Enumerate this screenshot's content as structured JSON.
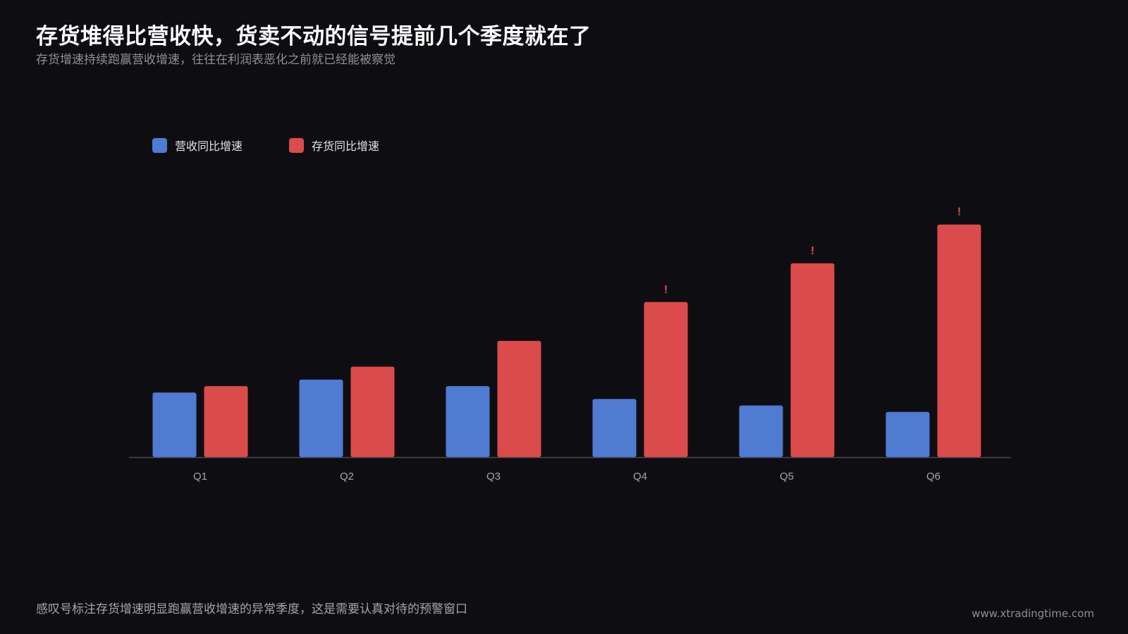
{
  "title": "存货堆得比营收快，货卖不动的信号提前几个季度就在了",
  "subtitle": "存货增速持续跑赢营收增速，往往在利润表恶化之前就已经能被察觉",
  "footnote": "感叹号标注存货增速明显跑赢营收增速的异常季度，这是需要认真对待的预警窗口",
  "watermark": "www.xtradingtime.com",
  "colors": {
    "background": "#0e0e12",
    "revenue": "#507bd3",
    "inventory": "#dc4b4b",
    "warning": "#e0504e",
    "axis": "#4a4a52",
    "tick_text": "#a4a4ab"
  },
  "chart_data": {
    "type": "bar",
    "categories": [
      "Q1",
      "Q2",
      "Q3",
      "Q4",
      "Q5",
      "Q6"
    ],
    "series": [
      {
        "name": "营收同比增速",
        "color": "#507bd3",
        "values": [
          10,
          12,
          11,
          9,
          8,
          7
        ]
      },
      {
        "name": "存货同比增速",
        "color": "#dc4b4b",
        "values": [
          11,
          14,
          18,
          24,
          30,
          36
        ]
      }
    ],
    "warning_marker": "!",
    "warnings": [
      false,
      false,
      false,
      true,
      true,
      true
    ],
    "ylim": [
      0,
      40
    ],
    "grid": false,
    "legend_position": "top-left",
    "xlabel": "",
    "ylabel": ""
  }
}
